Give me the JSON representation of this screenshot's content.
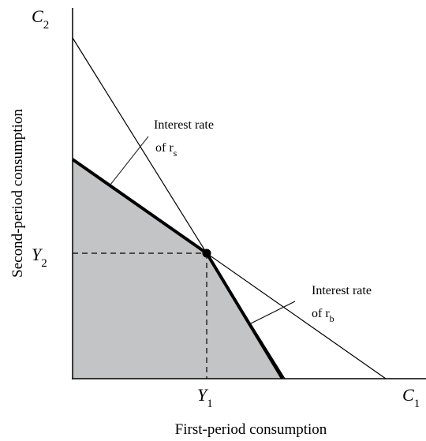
{
  "axes": {
    "y_label": "Second-period consumption",
    "x_label": "First-period consumption",
    "y_end": {
      "letter": "C",
      "subscript": "2"
    },
    "x_end": {
      "letter": "C",
      "subscript": "1"
    }
  },
  "points": {
    "y_income": {
      "letter": "Y",
      "subscript": "2"
    },
    "x_income": {
      "letter": "Y",
      "subscript": "1"
    }
  },
  "annotations": [
    {
      "line1": "Interest rate",
      "line2": "of r",
      "subscript": "s"
    },
    {
      "line1": "Interest rate",
      "line2": "of r",
      "subscript": "b"
    }
  ]
}
